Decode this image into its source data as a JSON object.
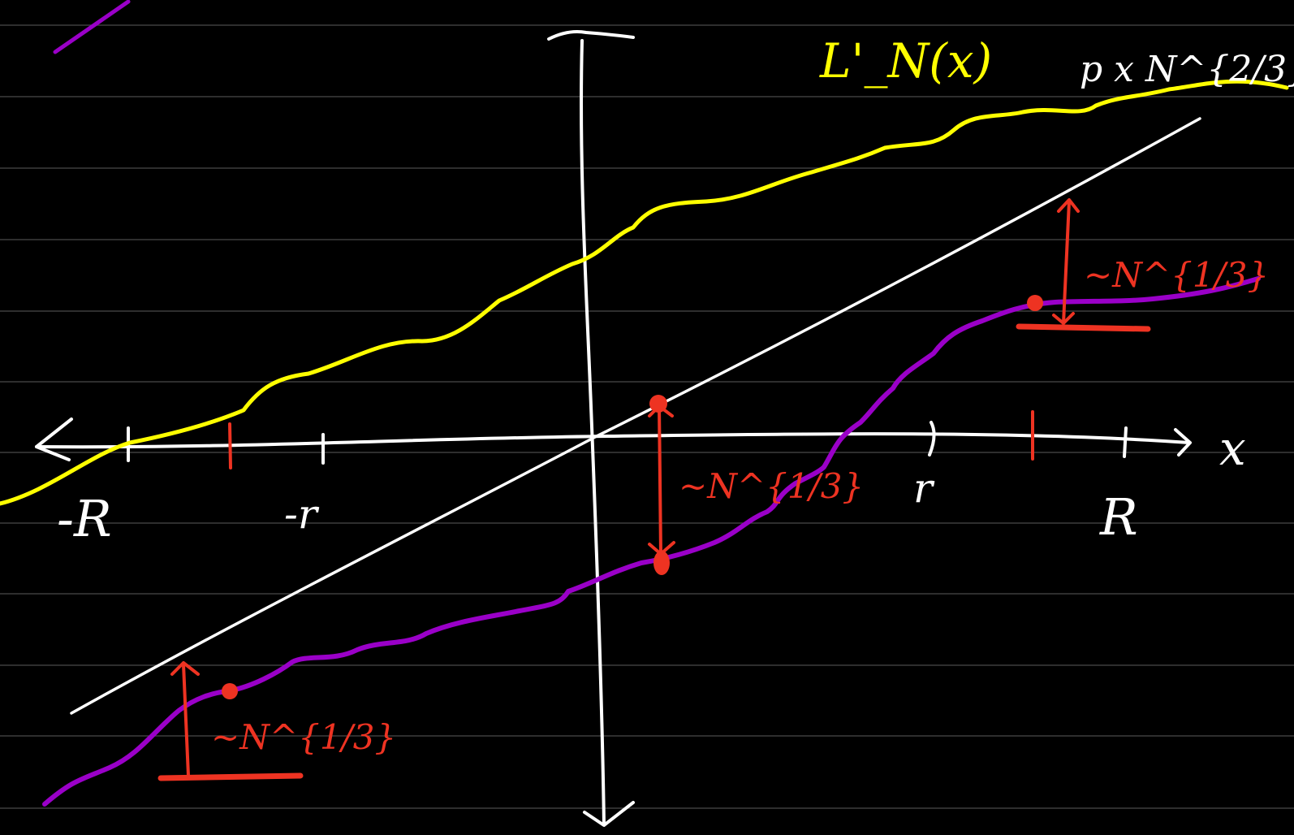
{
  "labels": {
    "curve_label": "L'_N(x)",
    "slope_label": "p x N^{2/3}",
    "fluct_left": "~N^{1/3}",
    "fluct_center": "~N^{1/3}",
    "fluct_right": "~N^{1/3}",
    "x_axis": "x",
    "neg_R": "-R",
    "neg_r": "-r",
    "pos_r": "r",
    "pos_R": "R"
  },
  "colors": {
    "background": "#000000",
    "axes": "#ffffff",
    "curve_upper": "#ffff00",
    "curve_lower": "#9a00c8",
    "annotation": "#ee3322",
    "ruled_lines": "#4a4a4a"
  }
}
